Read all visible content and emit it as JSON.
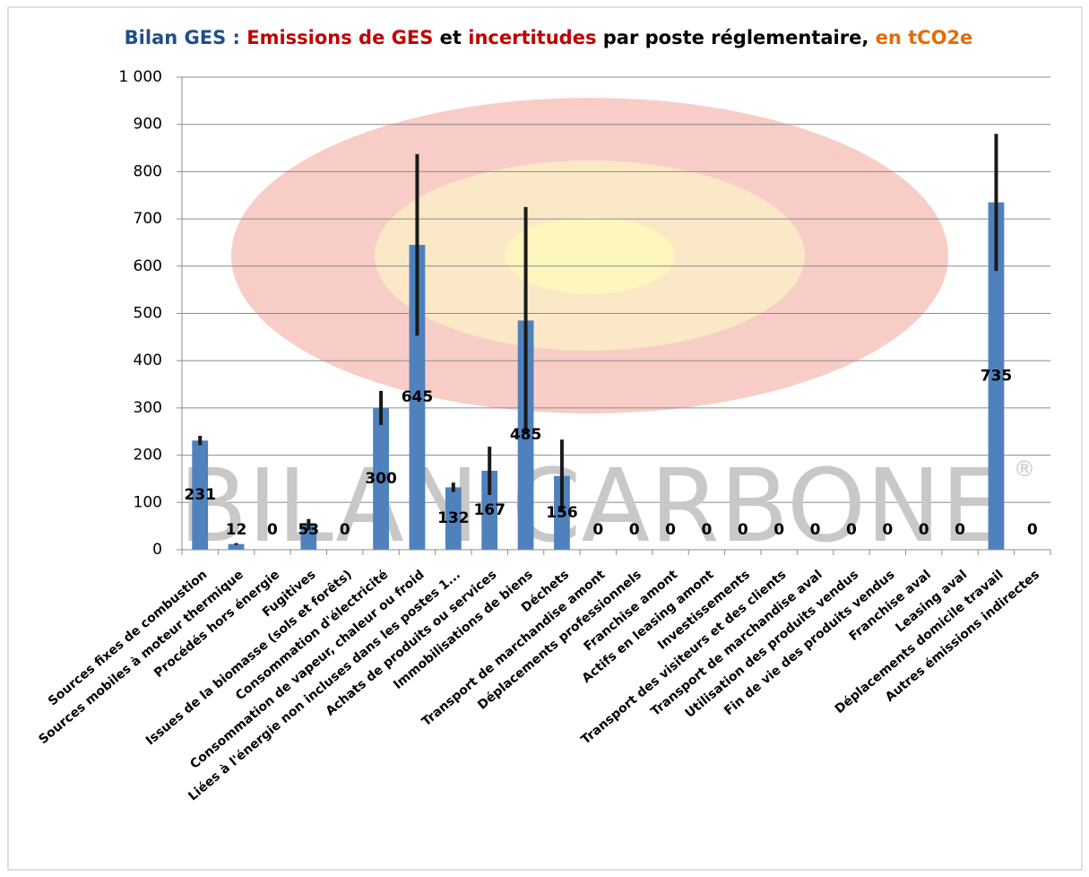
{
  "chart_data": {
    "type": "bar",
    "title_parts": [
      {
        "text": "Bilan GES : ",
        "color": "#1f4e8c"
      },
      {
        "text": "Emissions de GES",
        "color": "#c00000"
      },
      {
        "text": " et ",
        "color": "#000000"
      },
      {
        "text": "incertitudes",
        "color": "#c00000"
      },
      {
        "text": " par poste réglementaire, ",
        "color": "#000000"
      },
      {
        "text": "en tCO2e",
        "color": "#e46c0a"
      }
    ],
    "watermark": "BILAN CARBONE",
    "watermark_mark": "®",
    "categories": [
      "Sources fixes de combustion",
      "Sources mobiles à moteur thermique",
      "Procédés hors énergie",
      "Fugitives",
      "Issues de la biomasse (sols et forêts)",
      "Consommation d'électricité",
      "Consommation de vapeur, chaleur ou froid",
      "Liées à l'énergie non incluses dans les postes 1...",
      "Achats de produits ou services",
      "Immobilisations de biens",
      "Déchets",
      "Transport de marchandise amont",
      "Déplacements professionnels",
      "Franchise amont",
      "Actifs en leasing amont",
      "Investissements",
      "Transport des visiteurs et des clients",
      "Transport de marchandise aval",
      "Utilisation des produits vendus",
      "Fin de vie des produits vendus",
      "Franchise aval",
      "Leasing aval",
      "Déplacements domicile travail",
      "Autres émissions indirectes"
    ],
    "values": [
      231,
      12,
      0,
      53,
      0,
      300,
      645,
      132,
      167,
      485,
      156,
      0,
      0,
      0,
      0,
      0,
      0,
      0,
      0,
      0,
      0,
      0,
      735,
      0
    ],
    "errors": [
      10,
      2,
      0,
      12,
      0,
      36,
      192,
      10,
      51,
      240,
      77,
      0,
      0,
      0,
      0,
      0,
      0,
      0,
      0,
      0,
      0,
      0,
      145,
      0
    ],
    "color": "#4f81bd",
    "error_color": "#1a1a1a",
    "ylim": [
      0,
      1000
    ],
    "yticks": [
      0,
      100,
      200,
      300,
      400,
      500,
      600,
      700,
      800,
      900,
      {
        "value": 1000,
        "label": "1 000"
      }
    ],
    "grid": true
  }
}
